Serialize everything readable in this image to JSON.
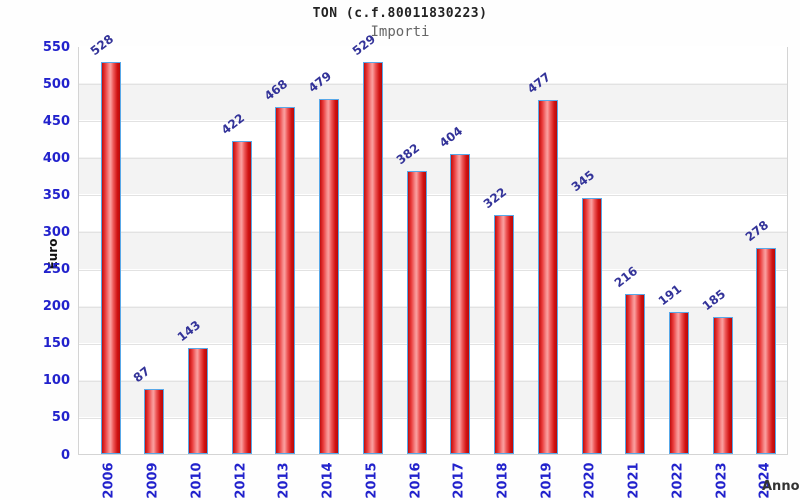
{
  "header": {
    "title": "TON (c.f.80011830223)",
    "subtitle": "Importi"
  },
  "chart_data": {
    "type": "bar",
    "title": "TON (c.f.80011830223)",
    "subtitle": "Importi",
    "xlabel": "Anno",
    "ylabel": "Euro",
    "categories": [
      "2006",
      "2009",
      "2010",
      "2012",
      "2013",
      "2014",
      "2015",
      "2016",
      "2017",
      "2018",
      "2019",
      "2020",
      "2021",
      "2022",
      "2023",
      "2024"
    ],
    "values": [
      528,
      87,
      143,
      422,
      468,
      479,
      529,
      382,
      404,
      322,
      477,
      345,
      216,
      191,
      185,
      278
    ],
    "ylim": [
      0,
      550
    ],
    "ytick_step": 50,
    "grid": "horizontal-bands",
    "legend": "none",
    "colors": {
      "bar_fill_dark": "#c00d0d",
      "bar_fill_light": "#fa9f9f",
      "bar_border": "#58a8e8",
      "axis_tick_label": "#2222cc",
      "value_label": "#333399",
      "band_gray": "#f3f3f3",
      "gridline": "#e2e2e2",
      "plot_border": "#d4d4d4",
      "title_color": "#222222",
      "subtitle_color": "#666666"
    }
  }
}
